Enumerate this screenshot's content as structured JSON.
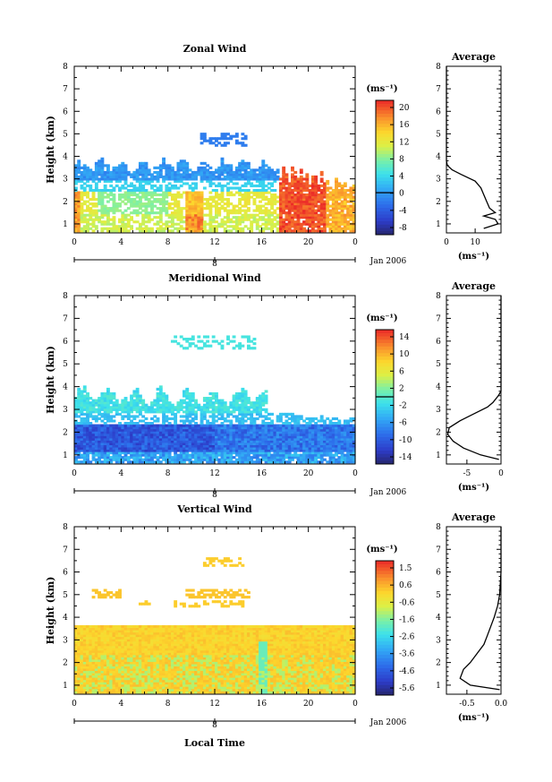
{
  "chart_data": [
    {
      "type": "heatmap",
      "title": "Zonal Wind",
      "ylabel": "Height (km)",
      "xlabel": "",
      "x_ticks": [
        "0",
        "4",
        "8",
        "12",
        "16",
        "20",
        "0"
      ],
      "y_ticks": [
        "1",
        "2",
        "3",
        "4",
        "5",
        "6",
        "7",
        "8"
      ],
      "xlim": [
        0,
        24
      ],
      "ylim": [
        0.6,
        8
      ],
      "date_label": "Jan 2006",
      "day_label": "8",
      "colorbar": {
        "unit_label": "(ms⁻¹)",
        "ticks": [
          "20",
          "16",
          "12",
          "8",
          "4",
          "0",
          "-4",
          "-8"
        ],
        "range": [
          -10,
          22
        ],
        "contour_level": 0
      },
      "average_profile": {
        "title": "Average",
        "x_ticks": [
          "0",
          "10"
        ],
        "xlim": [
          0,
          19
        ],
        "xlabel": "(ms⁻¹)",
        "heights": [
          0.8,
          1.0,
          1.2,
          1.35,
          1.5,
          1.7,
          2.0,
          2.3,
          2.6,
          2.9,
          3.2,
          3.4,
          3.6,
          3.8,
          4.0,
          4.5,
          5.0,
          8.0
        ],
        "values": [
          13,
          18,
          17,
          13,
          17,
          15,
          14,
          13,
          12,
          10,
          5,
          2,
          0.3,
          0,
          0,
          0,
          0,
          0
        ]
      }
    },
    {
      "type": "heatmap",
      "title": "Meridional Wind",
      "ylabel": "Height (km)",
      "xlabel": "",
      "x_ticks": [
        "0",
        "4",
        "8",
        "12",
        "16",
        "20",
        "0"
      ],
      "y_ticks": [
        "1",
        "2",
        "3",
        "4",
        "5",
        "6",
        "7",
        "8"
      ],
      "xlim": [
        0,
        24
      ],
      "ylim": [
        0.6,
        8
      ],
      "date_label": "Jan 2006",
      "day_label": "8",
      "colorbar": {
        "unit_label": "(ms⁻¹)",
        "ticks": [
          "14",
          "10",
          "6",
          "2",
          "-2",
          "-6",
          "-10",
          "-14"
        ],
        "range": [
          -16,
          16
        ],
        "contour_level": 0
      },
      "average_profile": {
        "title": "Average",
        "x_ticks": [
          "-5",
          "0"
        ],
        "xlim": [
          -8,
          0
        ],
        "xlabel": "(ms⁻¹)",
        "heights": [
          0.8,
          1.0,
          1.3,
          1.6,
          1.9,
          2.2,
          2.5,
          2.8,
          3.1,
          3.3,
          3.6,
          3.8,
          4.0,
          5.0,
          6.0,
          8.0
        ],
        "values": [
          -0.3,
          -3,
          -5.5,
          -7,
          -7.8,
          -7.6,
          -6,
          -4,
          -2,
          -1.2,
          -0.4,
          0,
          0,
          0,
          0,
          0
        ]
      }
    },
    {
      "type": "heatmap",
      "title": "Vertical Wind",
      "ylabel": "Height (km)",
      "xlabel": "Local Time",
      "x_ticks": [
        "0",
        "4",
        "8",
        "12",
        "16",
        "20",
        "0"
      ],
      "y_ticks": [
        "1",
        "2",
        "3",
        "4",
        "5",
        "6",
        "7",
        "8"
      ],
      "xlim": [
        0,
        24
      ],
      "ylim": [
        0.6,
        8
      ],
      "date_label": "Jan 2006",
      "day_label": "8",
      "colorbar": {
        "unit_label": "(ms⁻¹)",
        "ticks": [
          "1.5",
          "0.6",
          "-0.6",
          "-1.6",
          "-2.6",
          "-3.6",
          "-4.6",
          "-5.6"
        ],
        "range": [
          -6,
          2
        ],
        "contour_level": null
      },
      "average_profile": {
        "title": "Average",
        "x_ticks": [
          "-0.5",
          "0.0"
        ],
        "xlim": [
          -0.8,
          0
        ],
        "xlabel": "(ms⁻¹)",
        "heights": [
          0.8,
          1.0,
          1.3,
          1.7,
          2.0,
          2.4,
          2.8,
          3.2,
          3.6,
          4.0,
          4.5,
          5.0,
          6.0,
          8.0
        ],
        "values": [
          -0.02,
          -0.45,
          -0.6,
          -0.55,
          -0.45,
          -0.35,
          -0.25,
          -0.2,
          -0.15,
          -0.1,
          -0.05,
          -0.02,
          0,
          0
        ]
      }
    }
  ]
}
